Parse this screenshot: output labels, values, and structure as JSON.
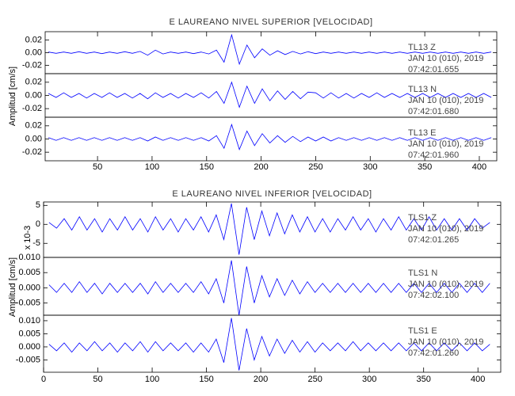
{
  "chart_data": [
    {
      "type": "line",
      "title": "E LAUREANO NIVEL SUPERIOR [VELOCIDAD]",
      "ylabel": "Amplitud [cm/s]",
      "xlim": [
        2,
        416
      ],
      "xticks": [
        50,
        100,
        150,
        200,
        250,
        300,
        350,
        400
      ],
      "x": [
        5,
        12,
        19,
        26,
        33,
        40,
        47,
        54,
        61,
        68,
        75,
        82,
        89,
        96,
        103,
        110,
        117,
        124,
        131,
        138,
        145,
        152,
        159,
        166,
        173,
        180,
        187,
        194,
        201,
        208,
        215,
        222,
        229,
        236,
        243,
        250,
        257,
        264,
        271,
        278,
        285,
        292,
        299,
        306,
        313,
        320,
        327,
        334,
        341,
        348,
        355,
        362,
        369,
        376,
        383,
        390,
        397,
        404,
        411
      ],
      "panels": [
        {
          "name": "TL13   Z",
          "date": "JAN 10 (010), 2019",
          "time": "07:42:01.655",
          "color": "#0000ff",
          "ylim": [
            -0.033,
            0.033
          ],
          "yticks": [
            0.02,
            {
              "value": 0,
              "label": "0.00"
            },
            -0.02
          ],
          "values": [
            0.001,
            -0.001,
            0.001,
            -0.001,
            0.0015,
            -0.001,
            0.001,
            -0.0015,
            0.001,
            -0.001,
            0.0015,
            -0.001,
            0.002,
            -0.004,
            0.004,
            -0.002,
            0.001,
            -0.001,
            0.001,
            -0.0015,
            0.001,
            -0.002,
            0.004,
            -0.015,
            0.028,
            -0.018,
            0.012,
            -0.008,
            0.006,
            -0.004,
            0.003,
            -0.003,
            0.002,
            -0.002,
            0.0015,
            -0.0015,
            0.001,
            -0.001,
            0.001,
            -0.001,
            0.001,
            -0.001,
            0.001,
            -0.001,
            0.001,
            -0.001,
            0.001,
            -0.001,
            0.001,
            -0.001,
            0.001,
            -0.001,
            0.001,
            -0.001,
            0.001,
            -0.001,
            0.001,
            -0.001,
            0.001
          ]
        },
        {
          "name": "TL13   N",
          "date": "JAN 10 (010), 2019",
          "time": "07:42:01.680",
          "color": "#0000ff",
          "ylim": [
            -0.033,
            0.033
          ],
          "yticks": [
            0.02,
            {
              "value": 0,
              "label": "0.00"
            },
            -0.02
          ],
          "values": [
            0.003,
            -0.003,
            0.004,
            -0.003,
            0.003,
            -0.004,
            0.003,
            -0.003,
            0.004,
            -0.003,
            0.003,
            -0.004,
            0.003,
            -0.005,
            0.004,
            -0.003,
            0.003,
            -0.004,
            0.003,
            -0.003,
            0.004,
            -0.004,
            0.006,
            -0.012,
            0.02,
            -0.018,
            0.014,
            -0.012,
            0.01,
            -0.008,
            0.007,
            -0.006,
            0.006,
            -0.005,
            0.005,
            0.004,
            -0.004,
            0.004,
            -0.004,
            0.003,
            -0.004,
            0.003,
            -0.003,
            0.004,
            -0.003,
            0.003,
            -0.003,
            0.003,
            -0.003,
            0.003,
            -0.003,
            0.003,
            -0.003,
            0.003,
            -0.003,
            0.003,
            -0.003,
            0.003,
            -0.003
          ]
        },
        {
          "name": "TL13   E",
          "date": "JAN 10 (010), 2019",
          "time": "07:42:01.960",
          "color": "#0000ff",
          "ylim": [
            -0.033,
            0.033
          ],
          "yticks": [
            0.02,
            {
              "value": 0,
              "label": "0.00"
            },
            -0.02
          ],
          "values": [
            0.002,
            -0.002,
            0.002,
            -0.002,
            0.002,
            -0.002,
            0.002,
            -0.002,
            0.002,
            -0.002,
            0.002,
            -0.002,
            0.002,
            -0.003,
            0.003,
            -0.002,
            0.002,
            -0.002,
            0.002,
            -0.002,
            0.002,
            -0.003,
            0.005,
            -0.014,
            0.022,
            -0.016,
            0.012,
            -0.01,
            0.008,
            -0.006,
            0.005,
            -0.005,
            0.004,
            -0.004,
            0.003,
            -0.003,
            0.003,
            -0.003,
            0.002,
            -0.002,
            0.002,
            -0.002,
            0.002,
            -0.002,
            0.002,
            -0.002,
            0.002,
            -0.002,
            0.002,
            -0.002,
            0.002,
            -0.002,
            0.002,
            -0.002,
            0.002,
            -0.002,
            0.002,
            -0.002,
            0.002
          ]
        }
      ]
    },
    {
      "type": "line",
      "title": "E LAUREANO NIVEL INFERIOR [VELOCIDAD]",
      "ylabel": "Amplitud [cm/s]",
      "scale_label": "x 10-3",
      "xlim": [
        0,
        421
      ],
      "xticks": [
        0,
        50,
        100,
        150,
        200,
        250,
        300,
        350,
        400
      ],
      "x": [
        5,
        12,
        19,
        26,
        33,
        40,
        47,
        54,
        61,
        68,
        75,
        82,
        89,
        96,
        103,
        110,
        117,
        124,
        131,
        138,
        145,
        152,
        159,
        166,
        173,
        180,
        187,
        194,
        201,
        208,
        215,
        222,
        229,
        236,
        243,
        250,
        257,
        264,
        271,
        278,
        285,
        292,
        299,
        306,
        313,
        320,
        327,
        334,
        341,
        348,
        355,
        362,
        369,
        376,
        383,
        390,
        397,
        404,
        411
      ],
      "panels": [
        {
          "name": "TLS1   Z",
          "date": "JAN 10 (010), 2019",
          "time": "07:42:01.265",
          "color": "#0000ff",
          "ylim": [
            -8.7,
            5.9
          ],
          "yticks": [
            5,
            0,
            -5
          ],
          "values": [
            0.5,
            -1,
            1.5,
            -1.5,
            2,
            -1.5,
            1.5,
            -2,
            1.5,
            -1.5,
            2,
            -1.5,
            1.5,
            -2,
            2,
            -1.5,
            1.5,
            -2,
            1.5,
            -1.5,
            2,
            -2,
            2.5,
            -4,
            5.5,
            -8,
            4.5,
            -4,
            3.5,
            -3,
            3,
            -2.5,
            2.5,
            -2,
            2,
            -2,
            1.5,
            -2,
            1.5,
            -1.5,
            2,
            -1.5,
            1.5,
            -2,
            1.5,
            -1.5,
            2,
            -1.5,
            1.5,
            -1.5,
            2,
            -1.5,
            1.5,
            -1.5,
            1.5,
            -1.5,
            1.5,
            -1,
            0.5
          ]
        },
        {
          "name": "TLS1   N",
          "date": "JAN 10 (010), 2019",
          "time": "07:42:02.100",
          "color": "#0000ff",
          "ylim": [
            -0.009,
            0.01
          ],
          "yticks": [
            {
              "value": 0.01,
              "label": "0.010"
            },
            0.005,
            {
              "value": 0,
              "label": "0.000"
            },
            -0.005
          ],
          "values": [
            0.001,
            -0.0015,
            0.0015,
            -0.0015,
            0.002,
            -0.0015,
            0.0015,
            -0.002,
            0.0015,
            -0.0015,
            0.0015,
            -0.0015,
            0.0015,
            -0.002,
            0.002,
            -0.0015,
            0.0015,
            -0.0015,
            0.0015,
            -0.0015,
            0.002,
            -0.002,
            0.003,
            -0.005,
            0.009,
            -0.009,
            0.007,
            -0.005,
            0.004,
            -0.003,
            0.003,
            -0.0025,
            0.0025,
            -0.002,
            0.002,
            -0.0015,
            0.0015,
            -0.0015,
            0.0015,
            -0.0015,
            0.0015,
            -0.0015,
            0.0015,
            -0.0015,
            0.0015,
            -0.0015,
            0.0015,
            -0.0015,
            0.0015,
            -0.0015,
            0.0015,
            -0.0015,
            0.0015,
            -0.0015,
            0.0015,
            -0.0015,
            0.0015,
            -0.0015,
            0.0015
          ]
        },
        {
          "name": "TLS1   E",
          "date": "JAN 10 (010), 2019",
          "time": "07:42:01.260",
          "color": "#0000ff",
          "ylim": [
            -0.0097,
            0.0121
          ],
          "yticks": [
            {
              "value": 0.01,
              "label": "0.010"
            },
            0.005,
            {
              "value": 0,
              "label": "0.000"
            },
            -0.005
          ],
          "values": [
            0.001,
            -0.0015,
            0.0015,
            -0.002,
            0.0015,
            -0.0015,
            0.002,
            -0.0015,
            0.0015,
            -0.002,
            0.0015,
            -0.0015,
            0.002,
            -0.002,
            0.002,
            -0.0015,
            0.0015,
            -0.0015,
            0.0015,
            -0.002,
            0.0015,
            -0.002,
            0.003,
            -0.006,
            0.011,
            -0.009,
            0.007,
            -0.005,
            0.004,
            -0.0035,
            0.003,
            -0.0025,
            0.0025,
            -0.002,
            0.002,
            -0.002,
            0.0015,
            -0.0015,
            0.0015,
            -0.0015,
            0.002,
            -0.0015,
            0.0015,
            -0.0015,
            0.0015,
            -0.0015,
            0.0015,
            -0.0015,
            0.0015,
            -0.0015,
            0.0015,
            -0.0015,
            0.0015,
            -0.0015,
            0.0015,
            -0.0015,
            0.0015,
            -0.0015,
            0.001
          ]
        }
      ]
    }
  ]
}
